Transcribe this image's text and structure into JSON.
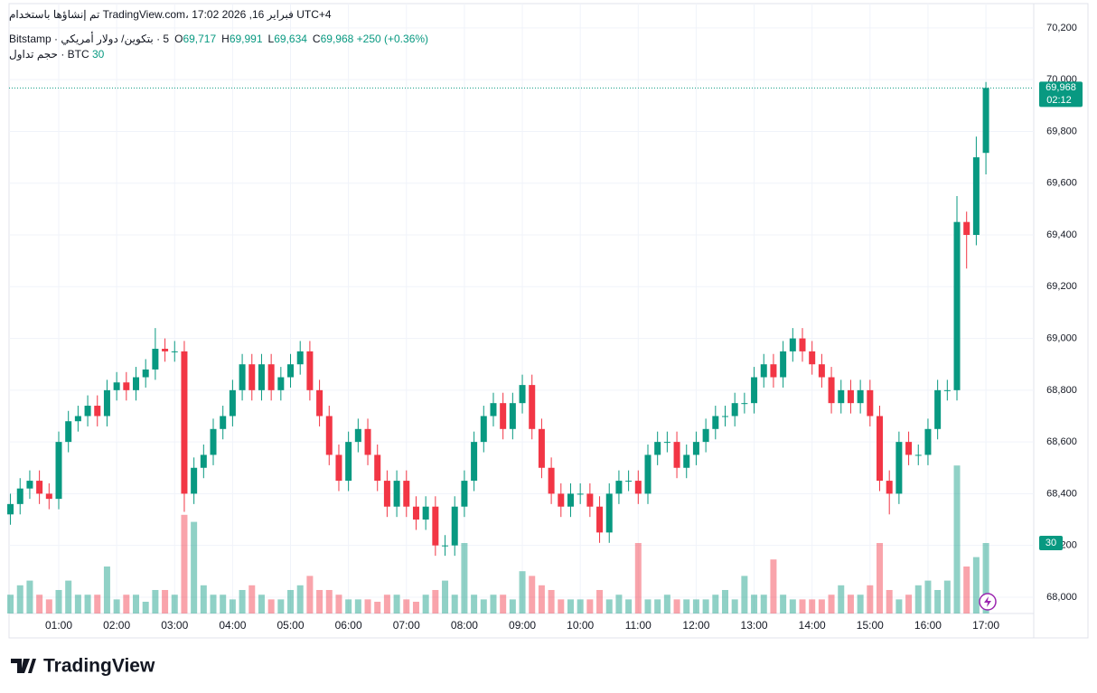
{
  "header": {
    "created": "تم إنشاؤها باستخدام TradingView.com، 17:02 2026 ,16 فبراير UTC+4",
    "symbol": "5 · بتكوين/ دولار أمريكي · Bitstamp",
    "ohlc": [
      {
        "key": "O",
        "value": "69,717"
      },
      {
        "key": "H",
        "value": "69,991"
      },
      {
        "key": "L",
        "value": "69,634"
      },
      {
        "key": "C",
        "value": "69,968"
      }
    ],
    "change": "+250 (+0.36%)",
    "volume_title": "حجم تداول · BTC",
    "volume_value": "30"
  },
  "footer": {
    "logo": "TradingView"
  },
  "chart_data": {
    "type": "candlestick",
    "x": [
      "00:10",
      "00:20",
      "00:30",
      "00:40",
      "00:50",
      "01:00",
      "01:10",
      "01:20",
      "01:30",
      "01:40",
      "01:50",
      "02:00",
      "02:10",
      "02:20",
      "02:30",
      "02:40",
      "02:50",
      "03:00",
      "03:10",
      "03:20",
      "03:30",
      "03:40",
      "03:50",
      "04:00",
      "04:10",
      "04:20",
      "04:30",
      "04:40",
      "04:50",
      "05:00",
      "05:10",
      "05:20",
      "05:30",
      "05:40",
      "05:50",
      "06:00",
      "06:10",
      "06:20",
      "06:30",
      "06:40",
      "06:50",
      "07:00",
      "07:10",
      "07:20",
      "07:30",
      "07:40",
      "07:50",
      "08:00",
      "08:10",
      "08:20",
      "08:30",
      "08:40",
      "08:50",
      "09:00",
      "09:10",
      "09:20",
      "09:30",
      "09:40",
      "09:50",
      "10:00",
      "10:10",
      "10:20",
      "10:30",
      "10:40",
      "10:50",
      "11:00",
      "11:10",
      "11:20",
      "11:30",
      "11:40",
      "11:50",
      "12:00",
      "12:10",
      "12:20",
      "12:30",
      "12:40",
      "12:50",
      "13:00",
      "13:10",
      "13:20",
      "13:30",
      "13:40",
      "13:50",
      "14:00",
      "14:10",
      "14:20",
      "14:30",
      "14:40",
      "14:50",
      "15:00",
      "15:10",
      "15:20",
      "15:30",
      "15:40",
      "15:50",
      "16:00",
      "16:10",
      "16:20",
      "16:30",
      "16:40",
      "16:50",
      "17:00"
    ],
    "open": [
      68320,
      68360,
      68420,
      68450,
      68400,
      68380,
      68600,
      68680,
      68700,
      68740,
      68700,
      68800,
      68830,
      68800,
      68850,
      68880,
      68960,
      68950,
      68950,
      68400,
      68500,
      68550,
      68650,
      68700,
      68800,
      68900,
      68800,
      68900,
      68800,
      68850,
      68900,
      68950,
      68800,
      68700,
      68550,
      68450,
      68600,
      68650,
      68550,
      68450,
      68350,
      68450,
      68350,
      68300,
      68350,
      68200,
      68200,
      68350,
      68450,
      68600,
      68700,
      68750,
      68650,
      68750,
      68820,
      68650,
      68500,
      68400,
      68350,
      68400,
      68400,
      68350,
      68250,
      68400,
      68450,
      68450,
      68400,
      68550,
      68600,
      68600,
      68500,
      68550,
      68600,
      68650,
      68700,
      68700,
      68750,
      68750,
      68850,
      68900,
      68850,
      68950,
      69000,
      68950,
      68900,
      68850,
      68750,
      68800,
      68750,
      68800,
      68700,
      68450,
      68400,
      68600,
      68550,
      68550,
      68650,
      68800,
      68800,
      69450,
      69400,
      69717
    ],
    "high": [
      68400,
      68460,
      68490,
      68490,
      68440,
      68640,
      68720,
      68740,
      68780,
      68780,
      68840,
      68870,
      68870,
      68890,
      68920,
      69040,
      69000,
      68990,
      68990,
      68540,
      68590,
      68690,
      68740,
      68840,
      68940,
      68940,
      68940,
      68940,
      68890,
      68940,
      68990,
      68990,
      68840,
      68740,
      68590,
      68640,
      68690,
      68690,
      68590,
      68490,
      68490,
      68490,
      68390,
      68390,
      68390,
      68240,
      68390,
      68490,
      68640,
      68740,
      68790,
      68790,
      68790,
      68860,
      68860,
      68690,
      68540,
      68440,
      68440,
      68440,
      68440,
      68390,
      68440,
      68490,
      68490,
      68490,
      68590,
      68640,
      68640,
      68640,
      68590,
      68640,
      68690,
      68740,
      68740,
      68790,
      68790,
      68890,
      68940,
      68940,
      68990,
      69040,
      69040,
      68990,
      68940,
      68890,
      68840,
      68840,
      68840,
      68840,
      68740,
      68490,
      68640,
      68640,
      68590,
      68690,
      68840,
      68840,
      69550,
      69490,
      69780,
      69991
    ],
    "low": [
      68280,
      68320,
      68380,
      68360,
      68340,
      68340,
      68560,
      68640,
      68660,
      68660,
      68660,
      68760,
      68760,
      68760,
      68810,
      68840,
      68910,
      68910,
      68330,
      68360,
      68460,
      68510,
      68610,
      68660,
      68760,
      68760,
      68760,
      68760,
      68760,
      68810,
      68860,
      68760,
      68660,
      68510,
      68410,
      68410,
      68560,
      68510,
      68410,
      68310,
      68310,
      68310,
      68260,
      68260,
      68160,
      68160,
      68160,
      68310,
      68410,
      68560,
      68660,
      68610,
      68610,
      68710,
      68610,
      68460,
      68360,
      68310,
      68310,
      68360,
      68310,
      68210,
      68210,
      68360,
      68410,
      68360,
      68360,
      68510,
      68560,
      68460,
      68460,
      68510,
      68560,
      68610,
      68660,
      68660,
      68710,
      68710,
      68810,
      68810,
      68810,
      68910,
      68910,
      68860,
      68810,
      68710,
      68710,
      68710,
      68710,
      68660,
      68410,
      68320,
      68360,
      68510,
      68510,
      68510,
      68610,
      68760,
      68760,
      69270,
      69360,
      69634
    ],
    "close": [
      68360,
      68420,
      68450,
      68400,
      68380,
      68600,
      68680,
      68700,
      68740,
      68700,
      68800,
      68830,
      68800,
      68850,
      68880,
      68960,
      68950,
      68950,
      68400,
      68500,
      68550,
      68650,
      68700,
      68800,
      68900,
      68800,
      68900,
      68800,
      68850,
      68900,
      68950,
      68800,
      68700,
      68550,
      68450,
      68600,
      68650,
      68550,
      68450,
      68350,
      68450,
      68350,
      68300,
      68350,
      68200,
      68200,
      68350,
      68450,
      68600,
      68700,
      68750,
      68650,
      68750,
      68820,
      68650,
      68500,
      68400,
      68350,
      68400,
      68400,
      68350,
      68250,
      68400,
      68450,
      68450,
      68400,
      68550,
      68600,
      68600,
      68500,
      68550,
      68600,
      68650,
      68700,
      68700,
      68750,
      68750,
      68850,
      68900,
      68850,
      68950,
      69000,
      68950,
      68900,
      68850,
      68750,
      68800,
      68750,
      68800,
      68700,
      68450,
      68400,
      68600,
      68550,
      68550,
      68650,
      68800,
      68800,
      69450,
      69400,
      69700,
      69968
    ],
    "volume": {
      "values": [
        8,
        12,
        14,
        8,
        6,
        10,
        14,
        8,
        8,
        8,
        20,
        6,
        8,
        8,
        5,
        10,
        10,
        8,
        42,
        39,
        12,
        8,
        8,
        6,
        10,
        12,
        8,
        6,
        6,
        10,
        12,
        16,
        10,
        10,
        8,
        6,
        6,
        6,
        5,
        8,
        8,
        6,
        5,
        8,
        10,
        14,
        8,
        30,
        8,
        6,
        8,
        8,
        6,
        18,
        16,
        12,
        10,
        6,
        6,
        6,
        6,
        10,
        6,
        8,
        6,
        30,
        6,
        6,
        8,
        6,
        6,
        6,
        6,
        8,
        10,
        6,
        16,
        8,
        8,
        23,
        8,
        6,
        6,
        6,
        6,
        8,
        12,
        8,
        8,
        12,
        30,
        10,
        6,
        8,
        12,
        14,
        10,
        14,
        63,
        20,
        24,
        30
      ],
      "vlim": [
        0,
        100
      ]
    },
    "price_line": {
      "value": 69968,
      "label": "69,968",
      "countdown": "02:12"
    },
    "volume_line": {
      "value": 30,
      "label": "30"
    },
    "ylim": [
      67937,
      70259
    ],
    "yticks": [
      {
        "value": 68000,
        "label": "68,000"
      },
      {
        "value": 68200,
        "label": "68,200"
      },
      {
        "value": 68400,
        "label": "68,400"
      },
      {
        "value": 68600,
        "label": "68,600"
      },
      {
        "value": 68800,
        "label": "68,800"
      },
      {
        "value": 69000,
        "label": "69,000"
      },
      {
        "value": 69200,
        "label": "69,200"
      },
      {
        "value": 69400,
        "label": "69,400"
      },
      {
        "value": 69600,
        "label": "69,600"
      },
      {
        "value": 69800,
        "label": "69,800"
      },
      {
        "value": 70000,
        "label": "70,000"
      },
      {
        "value": 70200,
        "label": "70,200"
      }
    ],
    "xticks": [
      "01:00",
      "02:00",
      "03:00",
      "04:00",
      "05:00",
      "06:00",
      "07:00",
      "08:00",
      "09:00",
      "10:00",
      "11:00",
      "12:00",
      "13:00",
      "14:00",
      "15:00",
      "16:00",
      "17:00"
    ],
    "grid": true,
    "colors": {
      "up": "#089981",
      "down": "#f23645"
    }
  }
}
